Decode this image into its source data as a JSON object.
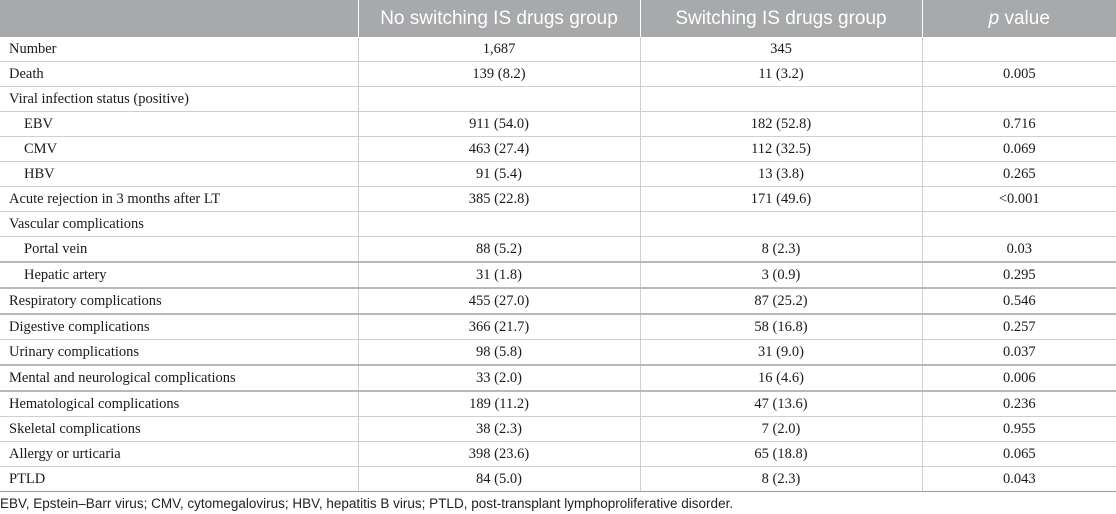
{
  "table": {
    "headers": [
      "",
      "No switching IS drugs group",
      "Switching IS drugs group",
      "p value"
    ],
    "header_p_italic": "p",
    "header_p_rest": " value",
    "rows": [
      {
        "label": "Number",
        "no_switch": "1,687",
        "switch": "345",
        "p": ""
      },
      {
        "label": "Death",
        "no_switch": "139 (8.2)",
        "switch": "11 (3.2)",
        "p": "0.005"
      },
      {
        "label": "Viral infection status (positive)",
        "no_switch": "",
        "switch": "",
        "p": ""
      },
      {
        "label": "EBV",
        "no_switch": "911 (54.0)",
        "switch": "182 (52.8)",
        "p": "0.716"
      },
      {
        "label": "CMV",
        "no_switch": "463 (27.4)",
        "switch": "112 (32.5)",
        "p": "0.069"
      },
      {
        "label": "HBV",
        "no_switch": "91 (5.4)",
        "switch": "13 (3.8)",
        "p": "0.265"
      },
      {
        "label": "Acute rejection in 3 months after LT",
        "no_switch": "385 (22.8)",
        "switch": "171 (49.6)",
        "p": "<0.001"
      },
      {
        "label": "Vascular complications",
        "no_switch": "",
        "switch": "",
        "p": ""
      },
      {
        "label": "Portal vein",
        "no_switch": "88 (5.2)",
        "switch": "8 (2.3)",
        "p": "0.03"
      },
      {
        "label": "Hepatic artery",
        "no_switch": "31 (1.8)",
        "switch": "3 (0.9)",
        "p": "0.295"
      },
      {
        "label": "Respiratory complications",
        "no_switch": "455 (27.0)",
        "switch": "87 (25.2)",
        "p": "0.546"
      },
      {
        "label": "Digestive complications",
        "no_switch": "366 (21.7)",
        "switch": "58 (16.8)",
        "p": "0.257"
      },
      {
        "label": "Urinary complications",
        "no_switch": "98 (5.8)",
        "switch": "31 (9.0)",
        "p": "0.037"
      },
      {
        "label": "Mental and neurological complications",
        "no_switch": "33 (2.0)",
        "switch": "16 (4.6)",
        "p": "0.006"
      },
      {
        "label": "Hematological complications",
        "no_switch": "189 (11.2)",
        "switch": "47 (13.6)",
        "p": "0.236"
      },
      {
        "label": "Skeletal complications",
        "no_switch": "38 (2.3)",
        "switch": "7 (2.0)",
        "p": "0.955"
      },
      {
        "label": "Allergy or urticaria",
        "no_switch": "398 (23.6)",
        "switch": "65 (18.8)",
        "p": "0.065"
      },
      {
        "label": "PTLD",
        "no_switch": "84 (5.0)",
        "switch": "8 (2.3)",
        "p": "0.043"
      }
    ]
  },
  "footnote": "EBV, Epstein–Barr virus; CMV, cytomegalovirus; HBV, hepatitis B virus; PTLD, post-transplant lymphoproliferative disorder.",
  "colors": {
    "header_bg": "#a8a9ab",
    "header_text": "#ffffff",
    "grid": "#cfcfcf"
  }
}
